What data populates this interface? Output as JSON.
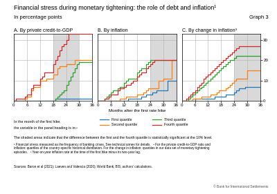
{
  "title": "Financial stress during monetary tightening: the role of debt and inflation¹",
  "subtitle": "In percentage points",
  "legend": "upper left",
  "annotations": [
    "Graph 3",
    "In the month of the first hike,",
    "the variable in the panel heading is in:²",
    "The shaded areas indicate that the difference between the first and the fourth quartile is statistically significant at the 10% level.",
    "¹ Financial stress measured as the frequency of banking crises. See technical annex for details.   ² For the private credit-to-GDP ratio and\ninflation: quartiles of the country-specific historical distribution. For the change in inflation: quartiles in our data set of monetary tightening\nepisodes.   ³ Year-on-year inflation rate at the time of the first hike minus its two-year lag.",
    "Sources: Baron et al (2021); Laeven and Valencia (2020); World Bank; BIS; authors’ calculations.",
    "© Bank for International Settlements"
  ],
  "chart_data": [
    {
      "type": "step",
      "title": "A. By private credit-to-GDP",
      "xlim": [
        0,
        36
      ],
      "ylim": [
        0,
        33
      ],
      "xticks": [
        0,
        6,
        12,
        18,
        24,
        30,
        36
      ],
      "yticks": [
        0,
        10,
        20,
        30
      ],
      "grid": true,
      "tick_labels": "x",
      "shade": [
        18,
        30
      ],
      "series": [
        {
          "name": "First quartile",
          "x": [
            0,
            5,
            6,
            9,
            18,
            19,
            21,
            24,
            25,
            30,
            36
          ],
          "values": [
            0,
            0,
            0,
            0,
            0,
            1,
            1,
            1,
            1,
            1,
            1
          ]
        },
        {
          "name": "Second quartile",
          "x": [
            0,
            5,
            6,
            8,
            9,
            12,
            15,
            18,
            20,
            21,
            24,
            28,
            36
          ],
          "values": [
            0,
            1,
            2,
            5,
            7,
            10,
            11,
            13,
            16,
            17,
            18,
            20,
            20
          ]
        },
        {
          "name": "Third quartile",
          "x": [
            0,
            18,
            19,
            20,
            21,
            22,
            23,
            24,
            25,
            26,
            27,
            28,
            29,
            30,
            36
          ],
          "values": [
            0,
            0,
            1,
            2,
            3,
            4,
            5,
            8,
            10,
            12,
            14,
            16,
            18,
            19,
            19
          ]
        },
        {
          "name": "Fourth quartile",
          "x": [
            0,
            1,
            5,
            6,
            8,
            9,
            12,
            13,
            14,
            18,
            19,
            20,
            21,
            22,
            23,
            24,
            25,
            36
          ],
          "values": [
            0,
            1,
            2,
            3,
            6,
            8,
            11,
            12,
            14,
            18,
            20,
            22,
            25,
            27,
            28,
            30,
            33,
            33
          ]
        }
      ]
    },
    {
      "type": "step",
      "title": "B. By inflation",
      "xlabel": "Months after the first rate hike",
      "xlim": [
        0,
        36
      ],
      "ylim": [
        0,
        33
      ],
      "xticks": [
        0,
        6,
        12,
        18,
        24,
        30,
        36
      ],
      "yticks": [
        0,
        10,
        20,
        30
      ],
      "grid": true,
      "tick_labels": "x",
      "shade": [
        24,
        36
      ],
      "series": [
        {
          "name": "First quartile",
          "x": [
            0,
            13,
            14,
            19,
            20,
            22,
            24,
            25,
            27,
            30,
            31,
            32,
            36
          ],
          "values": [
            0,
            0,
            1,
            1,
            2,
            3,
            3,
            4,
            5,
            5,
            5,
            10,
            10
          ]
        },
        {
          "name": "Second quartile",
          "x": [
            0,
            9,
            10,
            13,
            18,
            21,
            22,
            23,
            28,
            30,
            34,
            36
          ],
          "values": [
            0,
            0,
            1,
            2,
            3,
            4,
            5,
            6,
            10,
            11,
            20,
            20
          ]
        },
        {
          "name": "Third quartile",
          "x": [
            0,
            3,
            4,
            5,
            6,
            7,
            9,
            10,
            12,
            13,
            14,
            18,
            19,
            20,
            22,
            23,
            24,
            36
          ],
          "values": [
            0,
            1,
            2,
            3,
            4,
            5,
            6,
            7,
            9,
            10,
            11,
            14,
            15,
            16,
            18,
            19,
            20,
            20
          ]
        },
        {
          "name": "Fourth quartile",
          "x": [
            0,
            3,
            5,
            6,
            9,
            10,
            12,
            13,
            15,
            16,
            18,
            19,
            20,
            22,
            23,
            24,
            25,
            26,
            36
          ],
          "values": [
            0,
            1,
            2,
            3,
            5,
            6,
            7,
            8,
            9,
            10,
            12,
            13,
            14,
            16,
            17,
            18,
            19,
            20,
            20
          ]
        }
      ]
    },
    {
      "type": "step",
      "title": "C. By change in inflation³",
      "xlim": [
        0,
        36
      ],
      "ylim": [
        0,
        33
      ],
      "xticks": [
        0,
        6,
        12,
        18,
        24,
        30,
        36
      ],
      "yticks": [
        0,
        10,
        20,
        30
      ],
      "grid": true,
      "shade": [
        24,
        36
      ],
      "series": [
        {
          "name": "First quartile",
          "x": [
            0,
            5,
            6,
            14,
            15,
            19,
            20,
            23,
            24,
            25,
            26,
            29,
            36
          ],
          "values": [
            0,
            0,
            1,
            1,
            2,
            2,
            3,
            3,
            4,
            5,
            6,
            7,
            7
          ]
        },
        {
          "name": "Second quartile",
          "x": [
            0,
            4,
            5,
            9,
            12,
            13,
            16,
            17,
            20,
            21,
            22,
            23,
            24,
            25,
            30,
            36
          ],
          "values": [
            0,
            0,
            1,
            2,
            2,
            3,
            4,
            5,
            6,
            7,
            8,
            9,
            10,
            11,
            15,
            15
          ]
        },
        {
          "name": "Third quartile",
          "x": [
            0,
            2,
            3,
            4,
            5,
            6,
            7,
            8,
            9,
            10,
            11,
            12,
            13,
            14,
            15,
            16,
            17,
            18,
            19,
            20,
            21,
            22,
            24,
            25,
            36
          ],
          "values": [
            0,
            0,
            1,
            2,
            3,
            4,
            5,
            6,
            7,
            8,
            9,
            10,
            11,
            12,
            13,
            14,
            15,
            16,
            17,
            18,
            19,
            20,
            21,
            22,
            22
          ]
        },
        {
          "name": "Fourth quartile",
          "x": [
            0,
            1,
            2,
            3,
            4,
            5,
            6,
            7,
            8,
            9,
            10,
            11,
            12,
            13,
            14,
            15,
            16,
            17,
            18,
            19,
            20,
            21,
            22,
            23,
            24,
            25,
            26,
            36
          ],
          "values": [
            0,
            0,
            1,
            2,
            3,
            4,
            5,
            7,
            8,
            9,
            11,
            12,
            13,
            14,
            15,
            16,
            17,
            18,
            19,
            20,
            21,
            22,
            23,
            24,
            25,
            26,
            27,
            27
          ]
        }
      ]
    }
  ]
}
